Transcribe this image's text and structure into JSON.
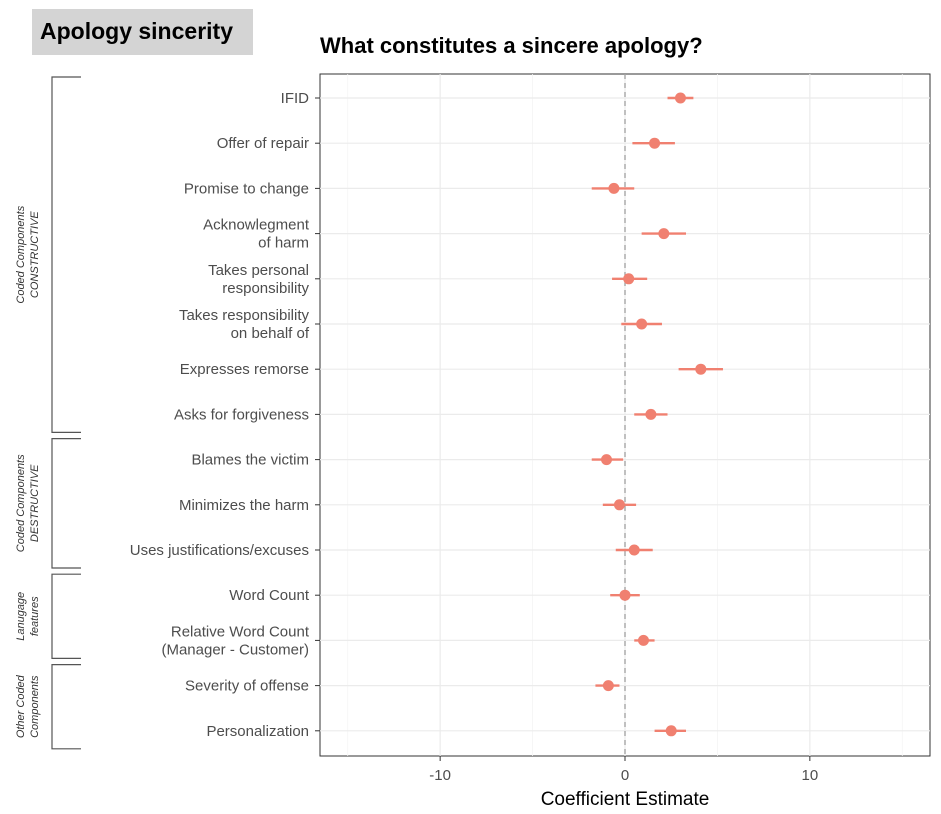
{
  "header": {
    "tag_label": "Apology sincerity"
  },
  "chart_data": {
    "type": "scatter",
    "title": "What constitutes a sincere apology?",
    "xlabel": "Coefficient Estimate",
    "ylabel": "",
    "xlim": [
      -16.5,
      16.5
    ],
    "xticks": [
      -10,
      0,
      10
    ],
    "grid": true,
    "reference_line_x": 0,
    "marker_color": "#f08070",
    "categories": [
      "IFID",
      "Offer of repair",
      "Promise to change",
      "Acknowlegment\nof harm",
      "Takes personal\nresponsibility",
      "Takes responsibility\non behalf of",
      "Expresses remorse",
      "Asks for forgiveness",
      "Blames the victim",
      "Minimizes the harm",
      "Uses justifications/excuses",
      "Word Count",
      "Relative Word Count\n(Manager - Customer)",
      "Severity of offense",
      "Personalization"
    ],
    "estimates": [
      3.0,
      1.6,
      -0.6,
      2.1,
      0.2,
      0.9,
      4.1,
      1.4,
      -1.0,
      -0.3,
      0.5,
      0.0,
      1.0,
      -0.9,
      2.5
    ],
    "ci_low": [
      2.3,
      0.4,
      -1.8,
      0.9,
      -0.7,
      -0.2,
      2.9,
      0.5,
      -1.8,
      -1.2,
      -0.5,
      -0.8,
      0.5,
      -1.6,
      1.6
    ],
    "ci_high": [
      3.7,
      2.7,
      0.5,
      3.3,
      1.2,
      2.0,
      5.3,
      2.3,
      -0.1,
      0.6,
      1.5,
      0.8,
      1.6,
      -0.3,
      3.3
    ],
    "groups": [
      {
        "label": [
          "Coded Components",
          "CONSTRUCTIVE"
        ],
        "from": 0,
        "to": 7
      },
      {
        "label": [
          "Coded Components",
          "DESTRUCTIVE"
        ],
        "from": 8,
        "to": 10
      },
      {
        "label": [
          "Lanugage",
          "features"
        ],
        "from": 11,
        "to": 12
      },
      {
        "label": [
          "Other Coded",
          "Components"
        ],
        "from": 13,
        "to": 14
      }
    ]
  }
}
